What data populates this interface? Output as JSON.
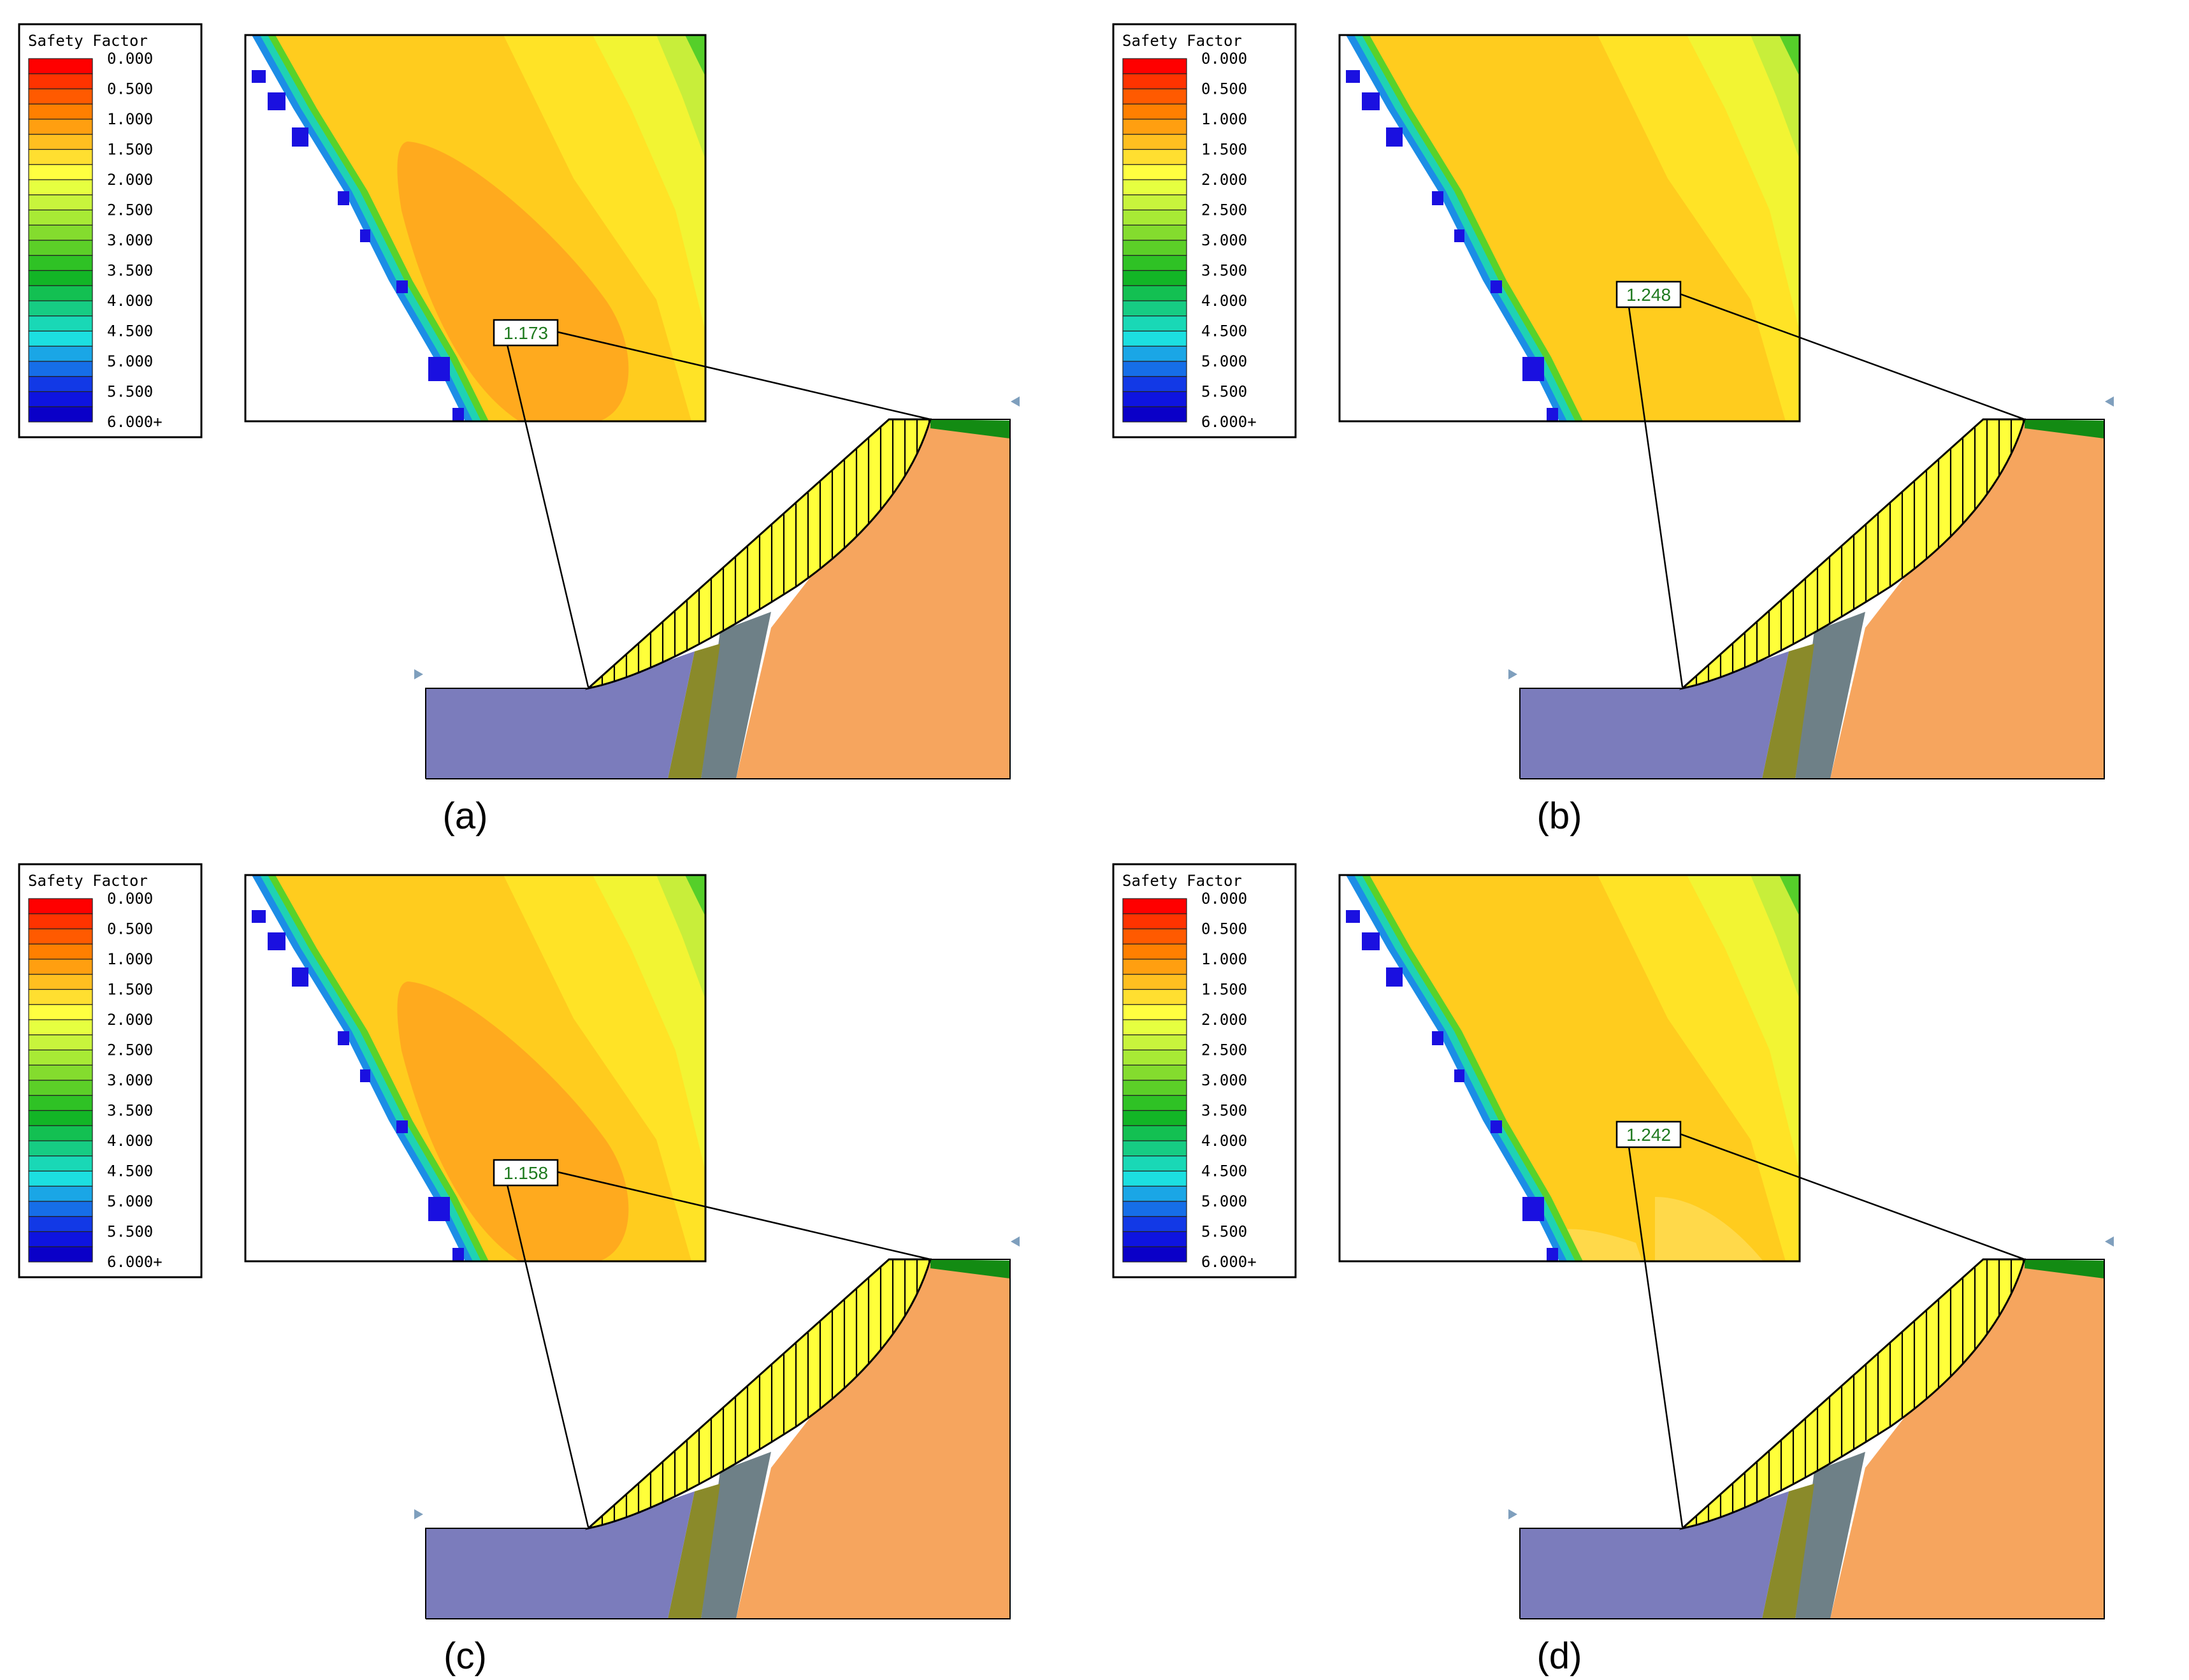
{
  "legend": {
    "title": "Safety Factor",
    "ticks": [
      "0.000",
      "0.500",
      "1.000",
      "1.500",
      "2.000",
      "2.500",
      "3.000",
      "3.500",
      "4.000",
      "4.500",
      "5.000",
      "5.500",
      "6.000+"
    ],
    "colors": [
      "#ff0000",
      "#ff3300",
      "#ff5a00",
      "#ff7f00",
      "#ff9f10",
      "#ffbf20",
      "#ffdf30",
      "#ffff40",
      "#e6ff40",
      "#c8f43c",
      "#a8ea35",
      "#84dc2e",
      "#5ccf28",
      "#2fc225",
      "#12b526",
      "#13c052",
      "#16cc83",
      "#19d8b6",
      "#1cdfe0",
      "#1aa6e6",
      "#166ee8",
      "#1239e6",
      "#0e14e0",
      "#0a00c8"
    ]
  },
  "panels": [
    {
      "caption": "(a)",
      "fs": "1.173",
      "variant": "a"
    },
    {
      "caption": "(b)",
      "fs": "1.248",
      "variant": "b"
    },
    {
      "caption": "(c)",
      "fs": "1.158",
      "variant": "c"
    },
    {
      "caption": "(d)",
      "fs": "1.242",
      "variant": "d"
    }
  ],
  "colors": {
    "layer_left": "#7b7cbc",
    "layer_olive": "#8a8a2a",
    "layer_slate": "#6e8087",
    "layer_right": "#f6a55e",
    "top_strip": "#138b13",
    "slip_mass": "#ffff3a",
    "contour_base": "#ffcc1e",
    "contour_low": "#ffaa1e",
    "contour_mid": "#ffe326",
    "contour_high": "#f2f433",
    "contour_green": "#55cf2a"
  }
}
